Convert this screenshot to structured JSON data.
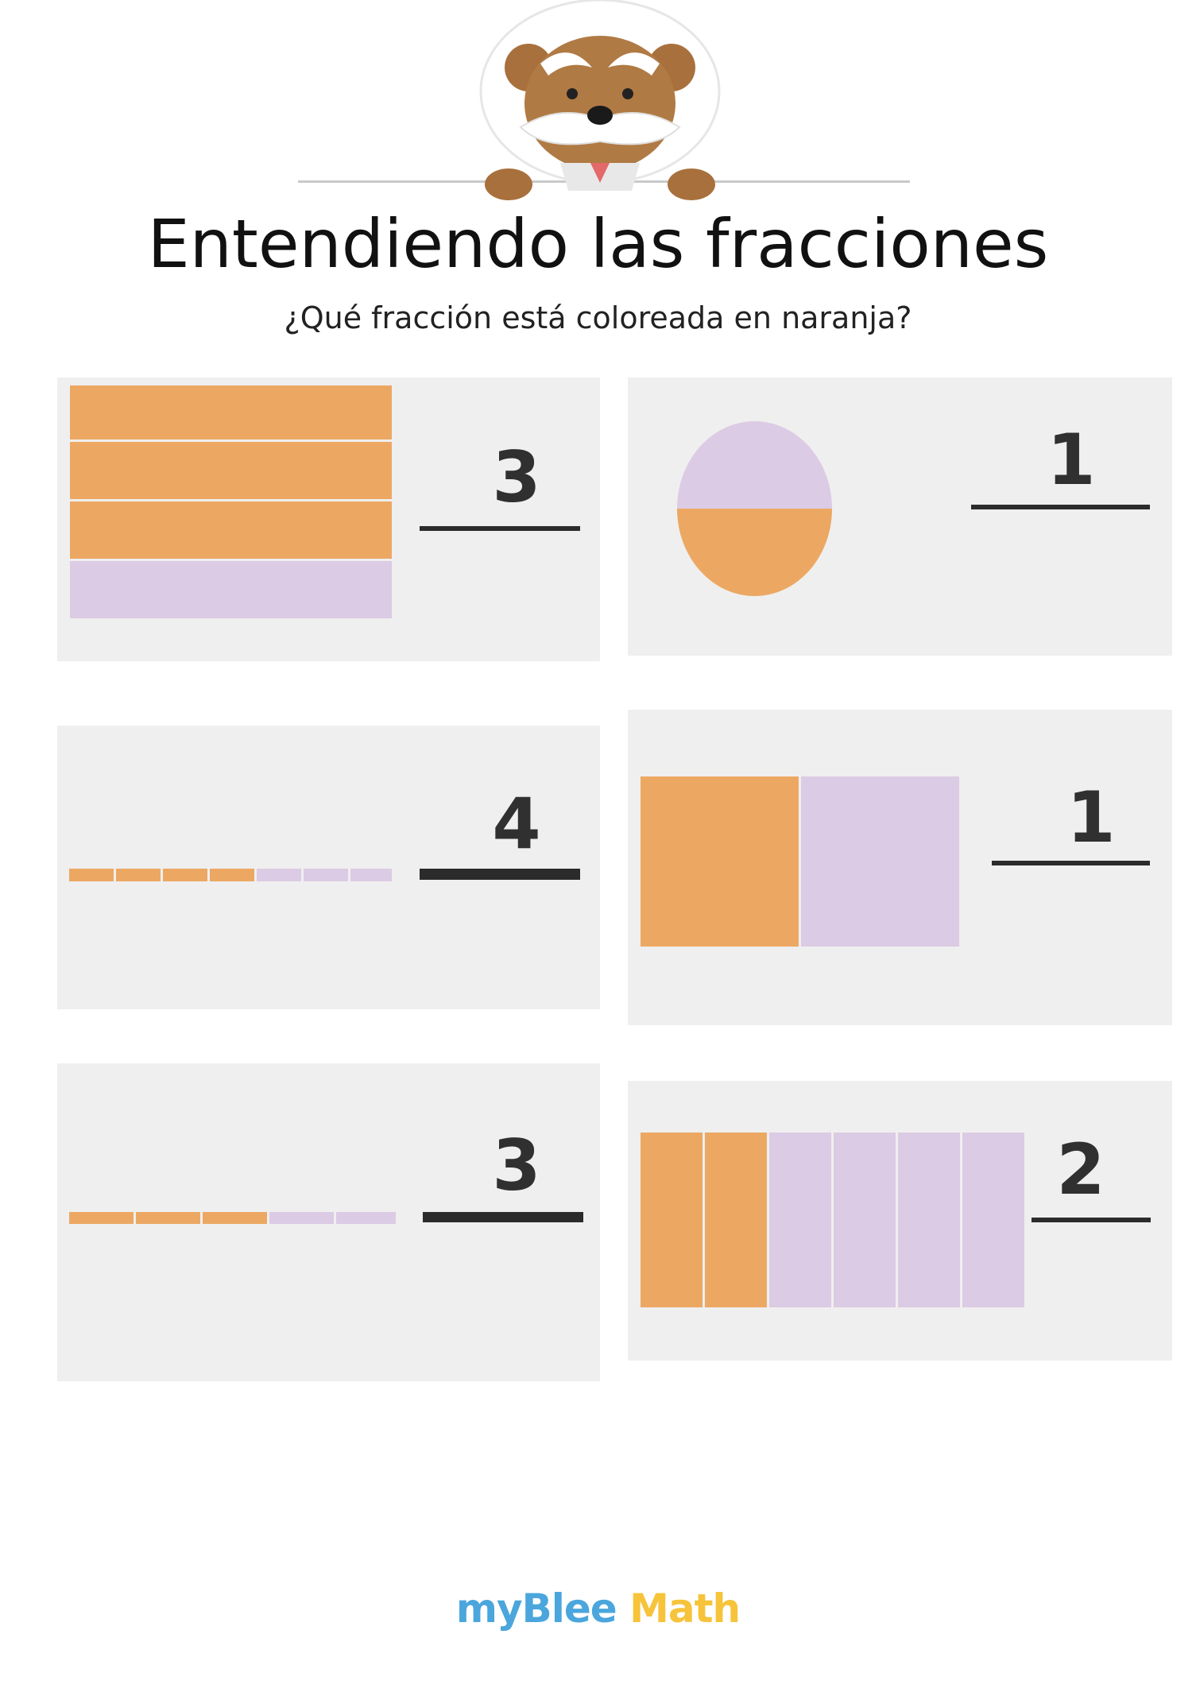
{
  "header": {
    "title": "Entendiendo las fracciones",
    "subtitle": "¿Qué fracción está coloreada en naranja?"
  },
  "colors": {
    "shaded": "#eca863",
    "unshaded": "#dccbe4",
    "card": "#efefef"
  },
  "exercises": [
    {
      "shape": "stacked-bars",
      "shaded_parts": 3,
      "total_parts": 4,
      "numerator": "3",
      "answer_blank": "denominator"
    },
    {
      "shape": "circle",
      "shaded_parts": 1,
      "total_parts": 2,
      "numerator": "1",
      "answer_blank": "denominator"
    },
    {
      "shape": "segmented-line",
      "shaded_parts": 4,
      "total_parts": 7,
      "numerator": "4",
      "answer_blank": "denominator"
    },
    {
      "shape": "square-halves",
      "shaded_parts": 1,
      "total_parts": 2,
      "numerator": "1",
      "answer_blank": "denominator"
    },
    {
      "shape": "segmented-line",
      "shaded_parts": 3,
      "total_parts": 5,
      "numerator": "3",
      "answer_blank": "denominator"
    },
    {
      "shape": "vertical-strips",
      "shaded_parts": 2,
      "total_parts": 6,
      "numerator": "2",
      "answer_blank": "denominator"
    }
  ],
  "footer": {
    "logo_part1": "myBlee",
    "logo_part2": "Math"
  },
  "icons": {
    "mascot": "bear-mascot-icon"
  }
}
